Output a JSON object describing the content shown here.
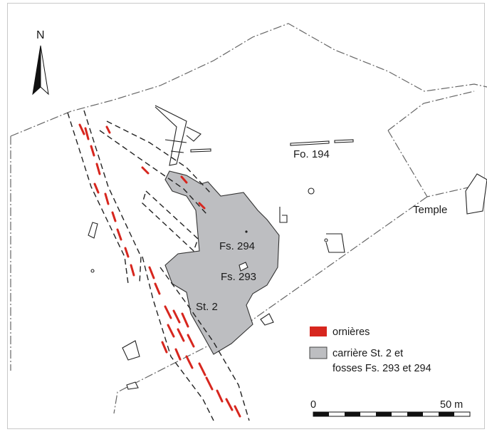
{
  "map": {
    "north_label": "N",
    "labels": {
      "fo194": "Fo. 194",
      "temple": "Temple",
      "fs294": "Fs. 294",
      "fs293": "Fs. 293",
      "st2": "St. 2"
    },
    "legend": [
      {
        "label": "ornières",
        "color": "#d7261e"
      },
      {
        "label_line1": "carrière St. 2 et",
        "label_line2": "fosses Fs. 293 et 294",
        "color": "#bdbec1"
      }
    ],
    "scale": {
      "start_label": "0",
      "end_label": "50 m",
      "length_m": 50
    }
  }
}
